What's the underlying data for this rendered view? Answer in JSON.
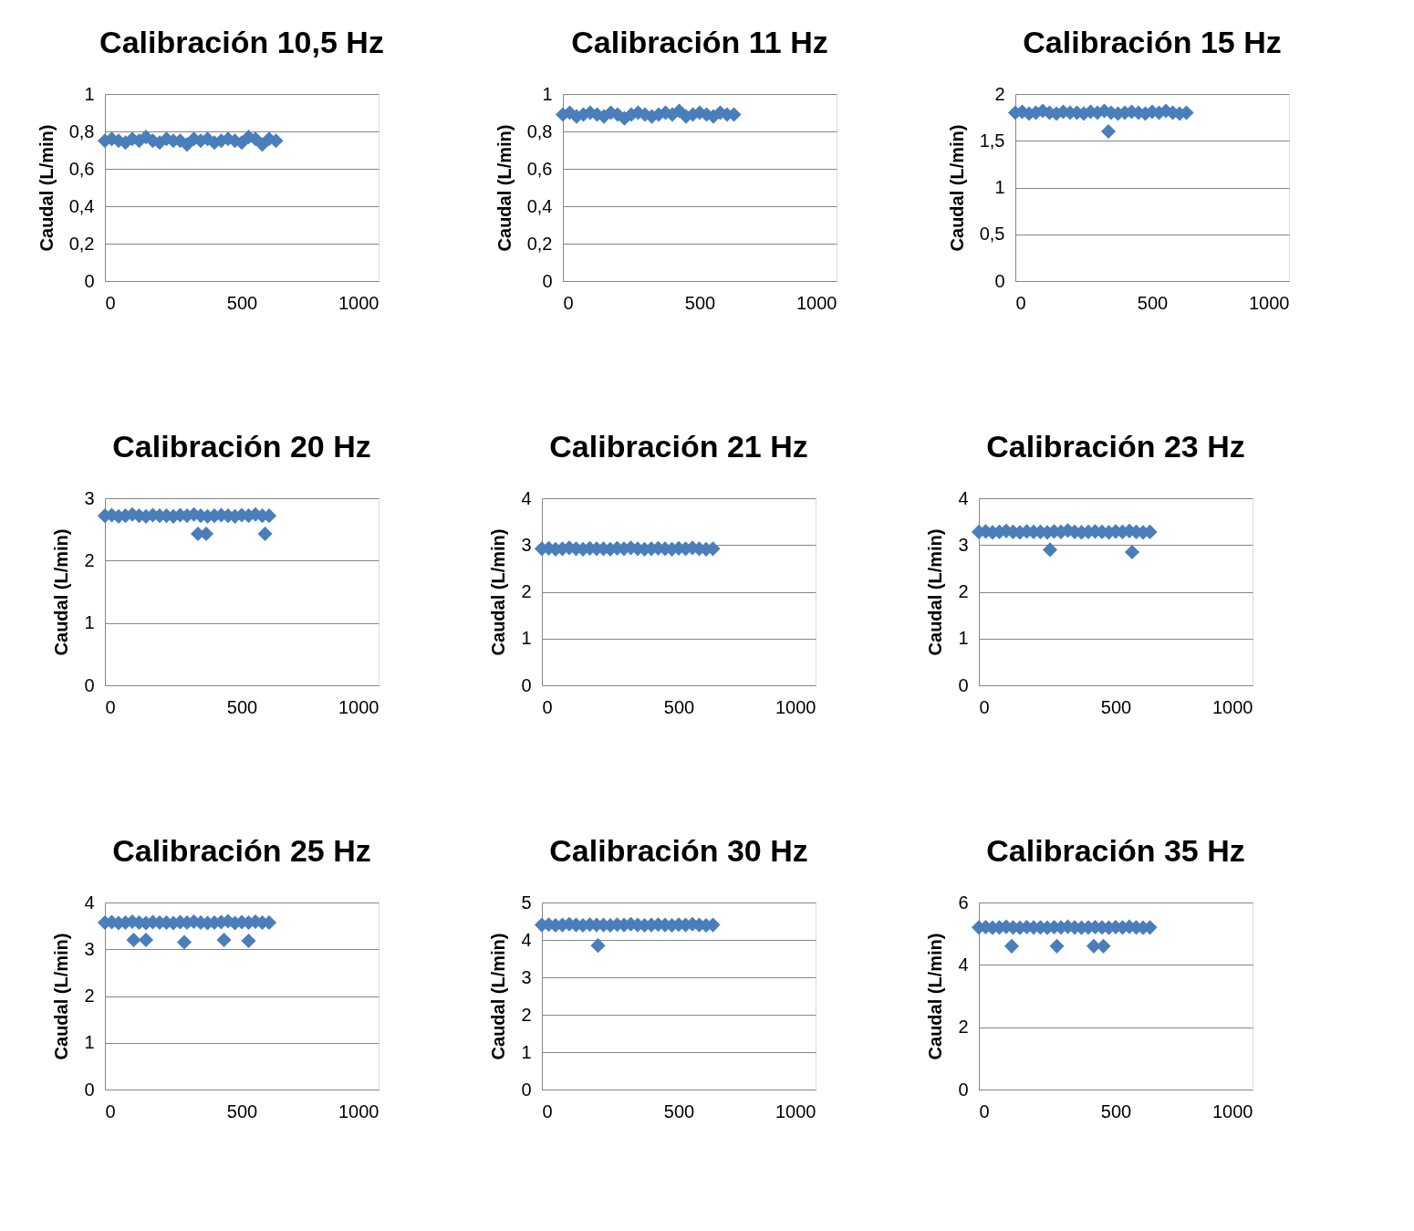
{
  "chart_data": [
    {
      "type": "scatter",
      "title": "Calibración 10,5 Hz",
      "ylabel": "Caudal (L/min)",
      "marker": "diamond",
      "grid": "y",
      "xlim": [
        0,
        1000
      ],
      "xticks": [
        0,
        500,
        1000
      ],
      "ylim": [
        0,
        1
      ],
      "yticks": [
        0,
        {
          "value": 0.2,
          "label": "0,2"
        },
        {
          "value": 0.4,
          "label": "0,4"
        },
        {
          "value": 0.6,
          "label": "0,6"
        },
        {
          "value": 0.8,
          "label": "0,8"
        },
        1
      ],
      "x": [
        0,
        25,
        50,
        75,
        100,
        125,
        150,
        175,
        200,
        225,
        250,
        275,
        300,
        325,
        350,
        375,
        400,
        425,
        450,
        475,
        500,
        525,
        550,
        575,
        600,
        625
      ],
      "series": [
        {
          "color": "#4a7ebb",
          "values": [
            0.75,
            0.76,
            0.75,
            0.74,
            0.76,
            0.75,
            0.77,
            0.75,
            0.74,
            0.76,
            0.75,
            0.75,
            0.73,
            0.76,
            0.75,
            0.76,
            0.74,
            0.75,
            0.76,
            0.75,
            0.74,
            0.77,
            0.76,
            0.73,
            0.76,
            0.75
          ]
        }
      ]
    },
    {
      "type": "scatter",
      "title": "Calibración 11 Hz",
      "ylabel": "Caudal (L/min)",
      "marker": "diamond",
      "grid": "y",
      "xlim": [
        0,
        1000
      ],
      "xticks": [
        0,
        500,
        1000
      ],
      "ylim": [
        0,
        1
      ],
      "yticks": [
        0,
        {
          "value": 0.2,
          "label": "0,2"
        },
        {
          "value": 0.4,
          "label": "0,4"
        },
        {
          "value": 0.6,
          "label": "0,6"
        },
        {
          "value": 0.8,
          "label": "0,8"
        },
        1
      ],
      "x": [
        0,
        25,
        50,
        75,
        100,
        125,
        150,
        175,
        200,
        225,
        250,
        275,
        300,
        325,
        350,
        375,
        400,
        425,
        450,
        475,
        500,
        525,
        550,
        575,
        600,
        625
      ],
      "series": [
        {
          "color": "#4a7ebb",
          "values": [
            0.89,
            0.9,
            0.88,
            0.89,
            0.9,
            0.89,
            0.88,
            0.9,
            0.89,
            0.87,
            0.89,
            0.9,
            0.89,
            0.88,
            0.89,
            0.9,
            0.89,
            0.91,
            0.88,
            0.89,
            0.9,
            0.89,
            0.88,
            0.9,
            0.89,
            0.89
          ]
        }
      ]
    },
    {
      "type": "scatter",
      "title": "Calibración 15 Hz",
      "ylabel": "Caudal (L/min)",
      "marker": "diamond",
      "grid": "y",
      "xlim": [
        0,
        1000
      ],
      "xticks": [
        0,
        500,
        1000
      ],
      "ylim": [
        0,
        2
      ],
      "yticks": [
        0,
        {
          "value": 0.5,
          "label": "0,5"
        },
        1,
        {
          "value": 1.5,
          "label": "1,5"
        },
        2
      ],
      "x": [
        0,
        25,
        50,
        75,
        100,
        125,
        150,
        175,
        200,
        225,
        250,
        275,
        300,
        325,
        350,
        375,
        400,
        425,
        450,
        475,
        500,
        525,
        550,
        575,
        600,
        625,
        340
      ],
      "series": [
        {
          "color": "#4a7ebb",
          "values": [
            1.8,
            1.81,
            1.79,
            1.8,
            1.82,
            1.8,
            1.79,
            1.81,
            1.8,
            1.8,
            1.79,
            1.81,
            1.8,
            1.82,
            1.8,
            1.79,
            1.8,
            1.81,
            1.8,
            1.79,
            1.81,
            1.8,
            1.82,
            1.8,
            1.79,
            1.8,
            1.6
          ]
        }
      ]
    },
    {
      "type": "scatter",
      "title": "Calibración 20 Hz",
      "ylabel": "Caudal (L/min)",
      "marker": "diamond",
      "grid": "y",
      "xlim": [
        0,
        1000
      ],
      "xticks": [
        0,
        500,
        1000
      ],
      "ylim": [
        0,
        3
      ],
      "yticks": [
        0,
        1,
        2,
        3
      ],
      "x": [
        0,
        25,
        50,
        75,
        100,
        125,
        150,
        175,
        200,
        225,
        250,
        275,
        300,
        325,
        350,
        375,
        400,
        425,
        450,
        475,
        500,
        525,
        550,
        575,
        600,
        340,
        370,
        585
      ],
      "series": [
        {
          "color": "#4a7ebb",
          "values": [
            2.72,
            2.73,
            2.71,
            2.72,
            2.74,
            2.72,
            2.71,
            2.73,
            2.72,
            2.72,
            2.71,
            2.73,
            2.72,
            2.74,
            2.72,
            2.71,
            2.72,
            2.73,
            2.72,
            2.71,
            2.73,
            2.72,
            2.74,
            2.72,
            2.72,
            2.43,
            2.43,
            2.43
          ]
        }
      ]
    },
    {
      "type": "scatter",
      "title": "Calibración 21 Hz",
      "ylabel": "Caudal (L/min)",
      "marker": "diamond",
      "grid": "y",
      "xlim": [
        0,
        1000
      ],
      "xticks": [
        0,
        500,
        1000
      ],
      "ylim": [
        0,
        4
      ],
      "yticks": [
        0,
        1,
        2,
        3,
        4
      ],
      "x": [
        0,
        25,
        50,
        75,
        100,
        125,
        150,
        175,
        200,
        225,
        250,
        275,
        300,
        325,
        350,
        375,
        400,
        425,
        450,
        475,
        500,
        525,
        550,
        575,
        600,
        625
      ],
      "series": [
        {
          "color": "#4a7ebb",
          "values": [
            2.92,
            2.93,
            2.91,
            2.92,
            2.94,
            2.92,
            2.91,
            2.93,
            2.92,
            2.92,
            2.91,
            2.93,
            2.92,
            2.94,
            2.92,
            2.91,
            2.92,
            2.93,
            2.92,
            2.91,
            2.93,
            2.92,
            2.94,
            2.92,
            2.91,
            2.92
          ]
        }
      ]
    },
    {
      "type": "scatter",
      "title": "Calibración 23 Hz",
      "ylabel": "Caudal (L/min)",
      "marker": "diamond",
      "grid": "y",
      "xlim": [
        0,
        1000
      ],
      "xticks": [
        0,
        500,
        1000
      ],
      "ylim": [
        0,
        4
      ],
      "yticks": [
        0,
        1,
        2,
        3,
        4
      ],
      "x": [
        0,
        25,
        50,
        75,
        100,
        125,
        150,
        175,
        200,
        225,
        250,
        275,
        300,
        325,
        350,
        375,
        400,
        425,
        450,
        475,
        500,
        525,
        550,
        575,
        600,
        625,
        260,
        560
      ],
      "series": [
        {
          "color": "#4a7ebb",
          "values": [
            3.28,
            3.29,
            3.27,
            3.28,
            3.3,
            3.28,
            3.27,
            3.29,
            3.28,
            3.28,
            3.27,
            3.29,
            3.28,
            3.31,
            3.28,
            3.27,
            3.28,
            3.29,
            3.28,
            3.27,
            3.29,
            3.28,
            3.3,
            3.28,
            3.27,
            3.28,
            2.9,
            2.85
          ]
        }
      ]
    },
    {
      "type": "scatter",
      "title": "Calibración 25 Hz",
      "ylabel": "Caudal (L/min)",
      "marker": "diamond",
      "grid": "y",
      "xlim": [
        0,
        1000
      ],
      "xticks": [
        0,
        500,
        1000
      ],
      "ylim": [
        0,
        4
      ],
      "yticks": [
        0,
        1,
        2,
        3,
        4
      ],
      "x": [
        0,
        25,
        50,
        75,
        100,
        125,
        150,
        175,
        200,
        225,
        250,
        275,
        300,
        325,
        350,
        375,
        400,
        425,
        450,
        475,
        500,
        525,
        550,
        575,
        600,
        105,
        150,
        290,
        435,
        525
      ],
      "series": [
        {
          "color": "#4a7ebb",
          "values": [
            3.57,
            3.58,
            3.56,
            3.57,
            3.59,
            3.57,
            3.56,
            3.58,
            3.57,
            3.57,
            3.56,
            3.58,
            3.57,
            3.59,
            3.57,
            3.56,
            3.57,
            3.58,
            3.6,
            3.56,
            3.58,
            3.57,
            3.59,
            3.57,
            3.57,
            3.2,
            3.2,
            3.15,
            3.2,
            3.18
          ]
        }
      ]
    },
    {
      "type": "scatter",
      "title": "Calibración 30 Hz",
      "ylabel": "Caudal (L/min)",
      "marker": "diamond",
      "grid": "y",
      "xlim": [
        0,
        1000
      ],
      "xticks": [
        0,
        500,
        1000
      ],
      "ylim": [
        0,
        5
      ],
      "yticks": [
        0,
        1,
        2,
        3,
        4,
        5
      ],
      "x": [
        0,
        25,
        50,
        75,
        100,
        125,
        150,
        175,
        200,
        225,
        250,
        275,
        300,
        325,
        350,
        375,
        400,
        425,
        450,
        475,
        500,
        525,
        550,
        575,
        600,
        625,
        205
      ],
      "series": [
        {
          "color": "#4a7ebb",
          "values": [
            4.4,
            4.41,
            4.39,
            4.4,
            4.42,
            4.4,
            4.39,
            4.41,
            4.4,
            4.4,
            4.39,
            4.41,
            4.4,
            4.42,
            4.4,
            4.39,
            4.4,
            4.41,
            4.4,
            4.39,
            4.41,
            4.4,
            4.42,
            4.4,
            4.39,
            4.4,
            3.85
          ]
        }
      ]
    },
    {
      "type": "scatter",
      "title": "Calibración 35 Hz",
      "ylabel": "Caudal (L/min)",
      "marker": "diamond",
      "grid": "y",
      "xlim": [
        0,
        1000
      ],
      "xticks": [
        0,
        500,
        1000
      ],
      "ylim": [
        0,
        6
      ],
      "yticks": [
        0,
        2,
        4,
        6
      ],
      "x": [
        0,
        25,
        50,
        75,
        100,
        125,
        150,
        175,
        200,
        225,
        250,
        275,
        300,
        325,
        350,
        375,
        400,
        425,
        450,
        475,
        500,
        525,
        550,
        575,
        600,
        625,
        120,
        285,
        420,
        455
      ],
      "series": [
        {
          "color": "#4a7ebb",
          "values": [
            5.2,
            5.21,
            5.19,
            5.2,
            5.22,
            5.2,
            5.19,
            5.21,
            5.2,
            5.2,
            5.19,
            5.21,
            5.2,
            5.22,
            5.2,
            5.19,
            5.2,
            5.21,
            5.2,
            5.19,
            5.21,
            5.2,
            5.22,
            5.2,
            5.19,
            5.2,
            4.6,
            4.6,
            4.6,
            4.6
          ]
        }
      ]
    }
  ]
}
